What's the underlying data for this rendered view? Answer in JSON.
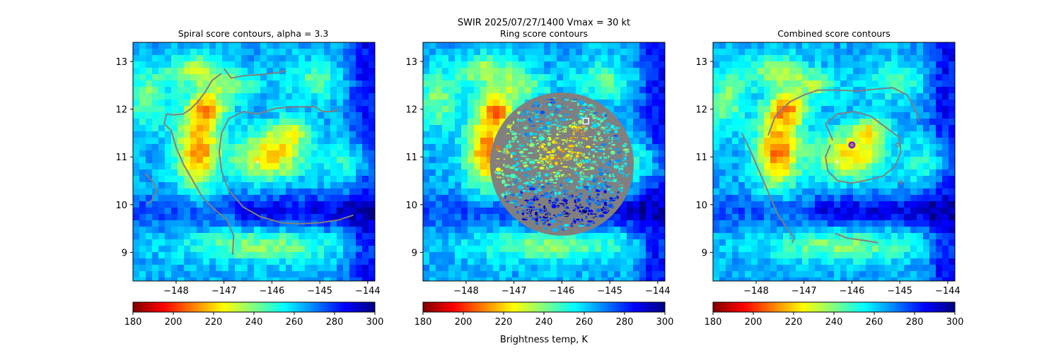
{
  "suptitle_line1": "SWIR  2025/07/27/1400    Vmax = 30 kt",
  "colorbar_label": "Brightness temp, K",
  "colormap": [
    "#7f0000",
    "#ff0000",
    "#ff8000",
    "#ffff00",
    "#80ff80",
    "#00ffff",
    "#0080ff",
    "#0000ff",
    "#00007f"
  ],
  "contour_color": "#808080",
  "chart_data": [
    {
      "type": "heatmap",
      "title": "Spiral score contours, alpha =  3.3",
      "xlim": [
        -148.9,
        -143.85
      ],
      "ylim": [
        8.4,
        13.4
      ],
      "xticks": [
        -148,
        -147,
        -146,
        -145,
        -144
      ],
      "xtick_labels": [
        "−148",
        "−147",
        "−146",
        "−145",
        "−144"
      ],
      "yticks": [
        9,
        10,
        11,
        12,
        13
      ],
      "ytick_labels": [
        "9",
        "10",
        "11",
        "12",
        "13"
      ],
      "colorbar": {
        "min": 180,
        "max": 300,
        "ticks": [
          180,
          200,
          220,
          240,
          260,
          280,
          300
        ],
        "label": ""
      },
      "center_marker": {
        "lon": -146.3,
        "lat": 10.9,
        "symbol": "+",
        "color": "#ffffff"
      },
      "contours": [
        [
          [
            -147.05,
            12.75
          ],
          [
            -147.25,
            12.6
          ],
          [
            -147.4,
            12.35
          ],
          [
            -147.55,
            12.15
          ],
          [
            -147.7,
            12.0
          ],
          [
            -147.85,
            11.9
          ],
          [
            -148.05,
            11.88
          ],
          [
            -148.2,
            11.9
          ]
        ],
        [
          [
            -147.0,
            12.85
          ],
          [
            -146.85,
            12.65
          ],
          [
            -146.6,
            12.7
          ],
          [
            -146.3,
            12.72
          ],
          [
            -146.0,
            12.75
          ],
          [
            -145.7,
            12.8
          ]
        ],
        [
          [
            -148.2,
            11.9
          ],
          [
            -148.25,
            11.7
          ],
          [
            -148.1,
            11.55
          ],
          [
            -148.0,
            11.2
          ],
          [
            -147.85,
            10.85
          ],
          [
            -147.65,
            10.5
          ],
          [
            -147.45,
            10.15
          ],
          [
            -147.2,
            9.9
          ],
          [
            -146.95,
            9.7
          ],
          [
            -146.8,
            9.35
          ],
          [
            -146.82,
            8.95
          ]
        ],
        [
          [
            -146.3,
            11.9
          ],
          [
            -146.6,
            11.95
          ],
          [
            -146.9,
            11.8
          ],
          [
            -147.05,
            11.5
          ],
          [
            -147.1,
            11.1
          ],
          [
            -147.05,
            10.7
          ],
          [
            -146.9,
            10.3
          ],
          [
            -146.6,
            9.95
          ],
          [
            -146.25,
            9.75
          ],
          [
            -145.8,
            9.62
          ],
          [
            -145.4,
            9.6
          ],
          [
            -145.0,
            9.62
          ],
          [
            -144.6,
            9.68
          ],
          [
            -144.3,
            9.78
          ]
        ],
        [
          [
            -146.3,
            11.9
          ],
          [
            -145.9,
            12.02
          ],
          [
            -145.5,
            12.05
          ],
          [
            -145.1,
            12.05
          ],
          [
            -144.95,
            11.95
          ],
          [
            -144.75,
            11.95
          ],
          [
            -144.6,
            12.0
          ]
        ],
        [
          [
            -148.65,
            10.65
          ],
          [
            -148.5,
            10.5
          ],
          [
            -148.4,
            10.3
          ],
          [
            -148.5,
            10.1
          ],
          [
            -148.6,
            10.0
          ]
        ]
      ]
    },
    {
      "type": "heatmap",
      "title": "Ring score contours",
      "xlim": [
        -148.9,
        -143.85
      ],
      "ylim": [
        8.4,
        13.4
      ],
      "xticks": [
        -148,
        -147,
        -146,
        -145,
        -144
      ],
      "xtick_labels": [
        "−148",
        "−147",
        "−146",
        "−145",
        "−144"
      ],
      "yticks": [
        9,
        10,
        11,
        12,
        13
      ],
      "ytick_labels": [
        "9",
        "10",
        "11",
        "12",
        "13"
      ],
      "colorbar": {
        "min": 180,
        "max": 300,
        "ticks": [
          180,
          200,
          220,
          240,
          260,
          280,
          300
        ],
        "label": "Brightness temp, K"
      },
      "ring_region": {
        "center_lon": -146.0,
        "center_lat": 10.85,
        "radius_deg": 1.5
      },
      "square_marker": {
        "lon": -145.5,
        "lat": 11.75,
        "color": "#ffffff"
      }
    },
    {
      "type": "heatmap",
      "title": "Combined score contours",
      "xlim": [
        -148.9,
        -143.85
      ],
      "ylim": [
        8.4,
        13.4
      ],
      "xticks": [
        -148,
        -147,
        -146,
        -145,
        -144
      ],
      "xtick_labels": [
        "−148",
        "−147",
        "−146",
        "−145",
        "−144"
      ],
      "yticks": [
        9,
        10,
        11,
        12,
        13
      ],
      "ytick_labels": [
        "9",
        "10",
        "11",
        "12",
        "13"
      ],
      "colorbar": {
        "min": 180,
        "max": 300,
        "ticks": [
          180,
          200,
          220,
          240,
          260,
          280,
          300
        ],
        "label": ""
      },
      "center_marker": {
        "lon": -146.3,
        "lat": 10.9,
        "symbol": "+",
        "color": "#ffffff"
      },
      "best_point": {
        "lon": -146.0,
        "lat": 11.25,
        "color": "#9400d3"
      },
      "minor_points": [
        {
          "lon": -145.05,
          "lat": 11.25
        },
        {
          "lon": -144.98,
          "lat": 10.47
        }
      ],
      "contours": [
        [
          [
            -148.3,
            11.5
          ],
          [
            -148.15,
            11.2
          ],
          [
            -148.0,
            10.85
          ],
          [
            -147.85,
            10.5
          ],
          [
            -147.7,
            10.15
          ],
          [
            -147.55,
            9.8
          ],
          [
            -147.35,
            9.5
          ],
          [
            -147.2,
            9.3
          ],
          [
            -147.25,
            9.2
          ]
        ],
        [
          [
            -147.75,
            11.45
          ],
          [
            -147.6,
            11.85
          ],
          [
            -147.3,
            12.15
          ],
          [
            -147.0,
            12.3
          ],
          [
            -146.7,
            12.4
          ],
          [
            -146.3,
            12.4
          ],
          [
            -145.9,
            12.38
          ],
          [
            -145.5,
            12.42
          ],
          [
            -145.15,
            12.45
          ],
          [
            -144.85,
            12.3
          ],
          [
            -144.7,
            12.05
          ],
          [
            -144.6,
            11.75
          ]
        ],
        [
          [
            -146.4,
            11.35
          ],
          [
            -146.55,
            11.7
          ],
          [
            -146.3,
            11.9
          ],
          [
            -145.95,
            11.95
          ],
          [
            -145.6,
            11.85
          ],
          [
            -145.4,
            11.7
          ],
          [
            -145.2,
            11.55
          ],
          [
            -145.0,
            11.4
          ],
          [
            -144.98,
            11.1
          ],
          [
            -145.1,
            10.8
          ],
          [
            -145.35,
            10.6
          ],
          [
            -145.65,
            10.52
          ],
          [
            -146.0,
            10.45
          ],
          [
            -146.3,
            10.5
          ],
          [
            -146.5,
            10.7
          ],
          [
            -146.55,
            11.0
          ],
          [
            -146.45,
            11.25
          ]
        ],
        [
          [
            -146.35,
            9.4
          ],
          [
            -146.1,
            9.3
          ],
          [
            -145.75,
            9.25
          ],
          [
            -145.45,
            9.2
          ]
        ]
      ]
    }
  ]
}
